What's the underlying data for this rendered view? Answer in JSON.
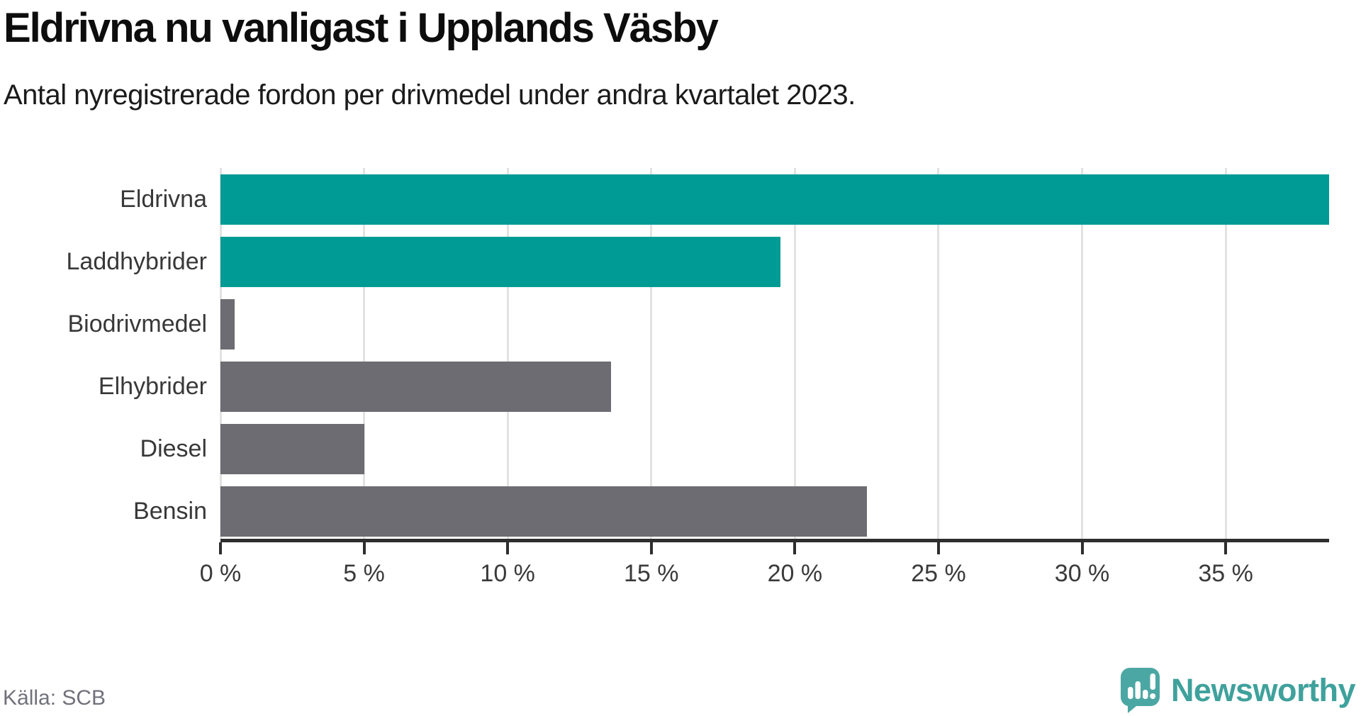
{
  "title": "Eldrivna nu vanligast i Upplands Väsby",
  "subtitle": "Antal nyregistrerade fordon per drivmedel under andra kvartalet 2023.",
  "footer": {
    "source": "Källa: SCB",
    "brand": "Newsworthy"
  },
  "colors": {
    "accent_teal": "#009b94",
    "muted_gray": "#6c6c72",
    "gridline": "#e2e2e2",
    "axis": "#2e2e2e",
    "logo_teal": "#4ba7a3",
    "brand_text": "#3fa19c"
  },
  "chart_data": {
    "type": "bar",
    "orientation": "horizontal",
    "title": "Eldrivna nu vanligast i Upplands Väsby",
    "subtitle": "Antal nyregistrerade fordon per drivmedel under andra kvartalet 2023.",
    "categories": [
      "Eldrivna",
      "Laddhybrider",
      "Biodrivmedel",
      "Elhybrider",
      "Diesel",
      "Bensin"
    ],
    "values": [
      38.6,
      19.5,
      0.5,
      13.6,
      5.0,
      22.5
    ],
    "unit": "%",
    "bar_colors": [
      "#009b94",
      "#009b94",
      "#6c6c72",
      "#6c6c72",
      "#6c6c72",
      "#6c6c72"
    ],
    "xlabel": "",
    "ylabel": "",
    "xlim": [
      0,
      38.6
    ],
    "xticks": [
      0,
      5,
      10,
      15,
      20,
      25,
      30,
      35
    ],
    "xtick_labels": [
      "0 %",
      "5 %",
      "10 %",
      "15 %",
      "20 %",
      "25 %",
      "30 %",
      "35 %"
    ],
    "grid": true,
    "legend": false,
    "source": "Källa: SCB"
  }
}
